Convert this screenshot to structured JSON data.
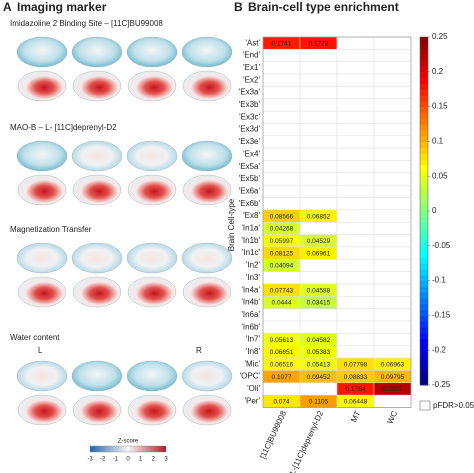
{
  "panel_a": {
    "label": "A",
    "title": "Imaging marker",
    "sections": [
      "Imidazoline 2 Binding Site – [11C]BU99008",
      "MAO-B – L- [11C]deprenyl-D2",
      "Magnetization Transfer",
      "Water content"
    ],
    "hemisphere_left": "L",
    "hemisphere_right": "R",
    "colorbar_title": "Z-score",
    "colorbar_ticks": [
      -3,
      -2,
      -1,
      0,
      1,
      2,
      3
    ]
  },
  "chart_data": {
    "type": "heatmap",
    "label": "B",
    "title": "Brain-cell type enrichment",
    "y_label": "Brain Cell-type",
    "columns": [
      "[11C]BU99008",
      "L-[11C]deprenyl-D2",
      "MT",
      "WC"
    ],
    "rows": [
      "'Ast'",
      "'End'",
      "'Ex1'",
      "'Ex2'",
      "'Ex3a'",
      "'Ex3b'",
      "'Ex3c'",
      "'Ex3d'",
      "'Ex3e'",
      "'Ex4'",
      "'Ex5a'",
      "'Ex5b'",
      "'Ex6a'",
      "'Ex6b'",
      "'Ex8'",
      "'In1a'",
      "'In1b'",
      "'In1c'",
      "'In2'",
      "'In3'",
      "'In4a'",
      "'In4b'",
      "'In6a'",
      "'In6b'",
      "'In7'",
      "'In8'",
      "'Mic'",
      "'OPC'",
      "'Oli'",
      "'Per'"
    ],
    "values": [
      [
        0.1741,
        0.1778,
        null,
        null
      ],
      [
        null,
        null,
        null,
        null
      ],
      [
        null,
        null,
        null,
        null
      ],
      [
        null,
        null,
        null,
        null
      ],
      [
        null,
        null,
        null,
        null
      ],
      [
        null,
        null,
        null,
        null
      ],
      [
        null,
        null,
        null,
        null
      ],
      [
        null,
        null,
        null,
        null
      ],
      [
        null,
        null,
        null,
        null
      ],
      [
        null,
        null,
        null,
        null
      ],
      [
        null,
        null,
        null,
        null
      ],
      [
        null,
        null,
        null,
        null
      ],
      [
        null,
        null,
        null,
        null
      ],
      [
        null,
        null,
        null,
        null
      ],
      [
        0.08566,
        0.06852,
        null,
        null
      ],
      [
        0.04268,
        null,
        null,
        null
      ],
      [
        0.05997,
        0.04529,
        null,
        null
      ],
      [
        0.08125,
        0.06961,
        null,
        null
      ],
      [
        0.04094,
        null,
        null,
        null
      ],
      [
        null,
        null,
        null,
        null
      ],
      [
        0.07743,
        0.04588,
        null,
        null
      ],
      [
        0.0444,
        0.03415,
        null,
        null
      ],
      [
        null,
        null,
        null,
        null
      ],
      [
        null,
        null,
        null,
        null
      ],
      [
        0.05613,
        0.04582,
        null,
        null
      ],
      [
        0.06651,
        0.05383,
        null,
        null
      ],
      [
        0.06516,
        0.05413,
        0.07798,
        0.06963
      ],
      [
        0.1077,
        0.09452,
        0.08833,
        0.09795
      ],
      [
        null,
        null,
        0.1764,
        0.2227
      ],
      [
        0.074,
        0.1105,
        0.06448,
        null
      ]
    ],
    "colormap": "jet",
    "colorbar_lim": [
      -0.25,
      0.25
    ],
    "colorbar_ticks": [
      0.25,
      0.2,
      0.15,
      0.1,
      0.05,
      0,
      -0.05,
      -0.1,
      -0.15,
      -0.2,
      -0.25
    ],
    "missing_label": "pFDR>0.05"
  }
}
